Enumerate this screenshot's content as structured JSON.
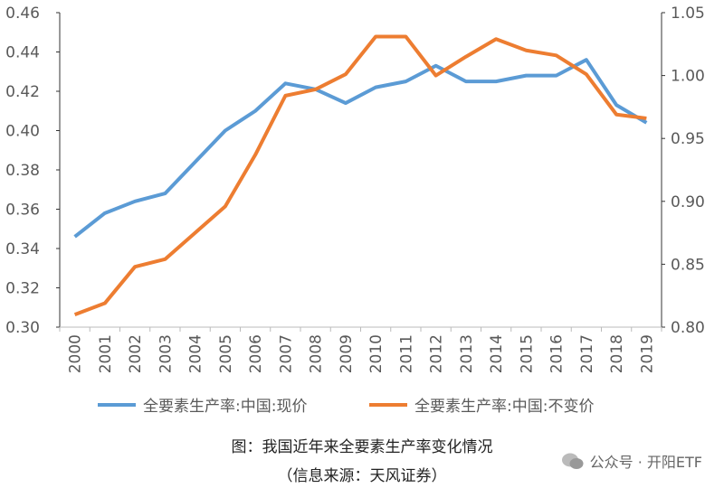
{
  "chart_data": {
    "type": "line",
    "categories": [
      "2000",
      "2001",
      "2002",
      "2003",
      "2004",
      "2005",
      "2006",
      "2007",
      "2008",
      "2009",
      "2010",
      "2011",
      "2012",
      "2013",
      "2014",
      "2015",
      "2016",
      "2017",
      "2018",
      "2019"
    ],
    "series": [
      {
        "name": "全要素生产率:中国:现价",
        "axis": "left",
        "color": "#5B9BD5",
        "values": [
          0.346,
          0.358,
          0.364,
          0.368,
          0.384,
          0.4,
          0.41,
          0.424,
          0.421,
          0.414,
          0.422,
          0.425,
          0.433,
          0.425,
          0.425,
          0.428,
          0.428,
          0.436,
          0.413,
          0.404
        ]
      },
      {
        "name": "全要素生产率:中国:不变价",
        "axis": "right",
        "color": "#ED7D31",
        "values": [
          0.81,
          0.819,
          0.848,
          0.854,
          0.875,
          0.896,
          0.937,
          0.984,
          0.989,
          1.001,
          1.031,
          1.031,
          1.0,
          1.015,
          1.029,
          1.02,
          1.016,
          1.001,
          0.969,
          0.966
        ]
      }
    ],
    "y_left": {
      "range": [
        0.3,
        0.46
      ],
      "ticks": [
        "0.30",
        "0.32",
        "0.34",
        "0.36",
        "0.38",
        "0.40",
        "0.42",
        "0.44",
        "0.46"
      ]
    },
    "y_right": {
      "range": [
        0.8,
        1.05
      ],
      "ticks": [
        "0.80",
        "0.85",
        "0.90",
        "0.95",
        "1.00",
        "1.05"
      ]
    },
    "grid": false,
    "legend": "bottom"
  },
  "caption": {
    "line1": "图：我国近年来全要素生产率变化情况",
    "line2": "（信息来源：天风证券）"
  },
  "watermark": {
    "text": "公众号 · 开阳ETF",
    "icon": "wechat-icon"
  }
}
